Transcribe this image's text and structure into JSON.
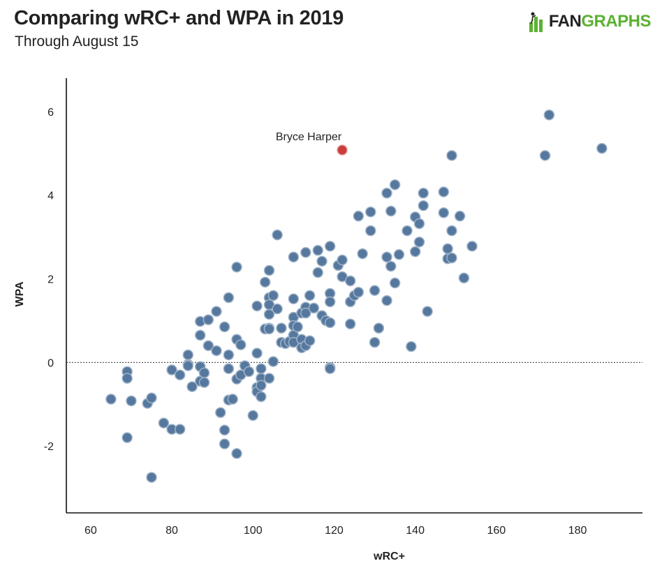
{
  "header": {
    "title": "Comparing wRC+ and WPA in 2019",
    "subtitle": "Through August 15",
    "logo_text_a": "FAN",
    "logo_text_b": "GRAPHS"
  },
  "colors": {
    "point": "#56789e",
    "point_stroke": "#9fb3c8",
    "highlight": "#cc3c3c",
    "axis": "#111111",
    "brand_green": "#5cb132"
  },
  "chart_data": {
    "type": "scatter",
    "xlabel": "wRC+",
    "ylabel": "WPA",
    "xlim": [
      54,
      196
    ],
    "ylim": [
      -3.6,
      6.8
    ],
    "xticks": [
      60,
      80,
      100,
      120,
      140,
      160,
      180
    ],
    "yticks": [
      -2,
      0,
      2,
      4,
      6
    ],
    "xtick_labels": [
      "60",
      "80",
      "100",
      "120",
      "140",
      "160",
      "180"
    ],
    "ytick_labels": [
      "-2",
      "0",
      "2",
      "4",
      "6"
    ],
    "reference_line": {
      "y": 0,
      "style": "dotted"
    },
    "highlight": {
      "label": "Bryce Harper",
      "x": 122,
      "y": 5.08
    },
    "points": [
      [
        65,
        -0.88
      ],
      [
        69,
        -0.22
      ],
      [
        69,
        -0.38
      ],
      [
        69,
        -1.8
      ],
      [
        70,
        -0.92
      ],
      [
        74,
        -0.98
      ],
      [
        75,
        -0.85
      ],
      [
        75,
        -2.75
      ],
      [
        78,
        -1.45
      ],
      [
        80,
        -1.6
      ],
      [
        80,
        -0.18
      ],
      [
        82,
        -0.3
      ],
      [
        82,
        -1.6
      ],
      [
        84,
        0.18
      ],
      [
        84,
        -0.05
      ],
      [
        84,
        -0.08
      ],
      [
        85,
        -0.58
      ],
      [
        87,
        0.98
      ],
      [
        87,
        0.65
      ],
      [
        87,
        -0.1
      ],
      [
        87,
        -0.45
      ],
      [
        88,
        -0.25
      ],
      [
        88,
        -0.48
      ],
      [
        89,
        1.02
      ],
      [
        89,
        0.4
      ],
      [
        91,
        1.22
      ],
      [
        91,
        0.28
      ],
      [
        92,
        -1.2
      ],
      [
        93,
        0.85
      ],
      [
        93,
        -1.62
      ],
      [
        93,
        -1.95
      ],
      [
        94,
        1.55
      ],
      [
        94,
        0.18
      ],
      [
        94,
        -0.15
      ],
      [
        94,
        -0.9
      ],
      [
        95,
        -0.88
      ],
      [
        96,
        2.28
      ],
      [
        96,
        0.55
      ],
      [
        96,
        -0.4
      ],
      [
        96,
        -2.18
      ],
      [
        97,
        0.42
      ],
      [
        97,
        -0.3
      ],
      [
        98,
        -0.08
      ],
      [
        99,
        -0.22
      ],
      [
        100,
        -1.27
      ],
      [
        101,
        1.35
      ],
      [
        101,
        0.22
      ],
      [
        101,
        -0.6
      ],
      [
        101,
        -0.7
      ],
      [
        102,
        -0.15
      ],
      [
        102,
        -0.38
      ],
      [
        102,
        -0.55
      ],
      [
        102,
        -0.82
      ],
      [
        103,
        1.92
      ],
      [
        103,
        0.8
      ],
      [
        104,
        2.2
      ],
      [
        104,
        1.55
      ],
      [
        104,
        1.38
      ],
      [
        104,
        1.15
      ],
      [
        104,
        0.82
      ],
      [
        104,
        0.8
      ],
      [
        104,
        -0.38
      ],
      [
        105,
        1.6
      ],
      [
        105,
        0.02
      ],
      [
        106,
        3.05
      ],
      [
        106,
        1.28
      ],
      [
        107,
        0.82
      ],
      [
        107,
        0.48
      ],
      [
        108,
        0.45
      ],
      [
        109,
        0.5
      ],
      [
        110,
        2.52
      ],
      [
        110,
        1.52
      ],
      [
        110,
        1.08
      ],
      [
        110,
        0.88
      ],
      [
        110,
        0.65
      ],
      [
        110,
        0.48
      ],
      [
        111,
        0.85
      ],
      [
        112,
        1.18
      ],
      [
        112,
        0.55
      ],
      [
        112,
        0.35
      ],
      [
        113,
        2.63
      ],
      [
        113,
        1.32
      ],
      [
        113,
        1.18
      ],
      [
        113,
        0.4
      ],
      [
        114,
        1.6
      ],
      [
        114,
        0.52
      ],
      [
        115,
        1.3
      ],
      [
        116,
        2.68
      ],
      [
        116,
        2.15
      ],
      [
        117,
        2.42
      ],
      [
        117,
        1.12
      ],
      [
        118,
        1.0
      ],
      [
        119,
        2.78
      ],
      [
        119,
        1.65
      ],
      [
        119,
        1.45
      ],
      [
        119,
        0.95
      ],
      [
        119,
        -0.12
      ],
      [
        119,
        -0.15
      ],
      [
        121,
        2.32
      ],
      [
        122,
        2.45
      ],
      [
        122,
        2.05
      ],
      [
        124,
        1.95
      ],
      [
        124,
        1.45
      ],
      [
        124,
        0.92
      ],
      [
        125,
        1.6
      ],
      [
        126,
        3.5
      ],
      [
        126,
        1.68
      ],
      [
        127,
        2.6
      ],
      [
        129,
        3.6
      ],
      [
        129,
        3.15
      ],
      [
        130,
        1.72
      ],
      [
        130,
        0.48
      ],
      [
        131,
        0.82
      ],
      [
        133,
        4.05
      ],
      [
        133,
        2.52
      ],
      [
        133,
        1.48
      ],
      [
        134,
        3.62
      ],
      [
        134,
        2.3
      ],
      [
        135,
        4.25
      ],
      [
        135,
        1.9
      ],
      [
        136,
        2.58
      ],
      [
        138,
        3.15
      ],
      [
        139,
        0.38
      ],
      [
        140,
        3.48
      ],
      [
        140,
        2.65
      ],
      [
        141,
        3.32
      ],
      [
        141,
        2.88
      ],
      [
        142,
        4.05
      ],
      [
        142,
        3.75
      ],
      [
        143,
        1.22
      ],
      [
        147,
        4.08
      ],
      [
        147,
        3.58
      ],
      [
        148,
        2.72
      ],
      [
        148,
        2.48
      ],
      [
        149,
        4.95
      ],
      [
        149,
        3.15
      ],
      [
        149,
        2.5
      ],
      [
        151,
        3.5
      ],
      [
        152,
        2.02
      ],
      [
        154,
        2.78
      ],
      [
        172,
        4.95
      ],
      [
        173,
        5.92
      ],
      [
        186,
        5.12
      ]
    ]
  }
}
